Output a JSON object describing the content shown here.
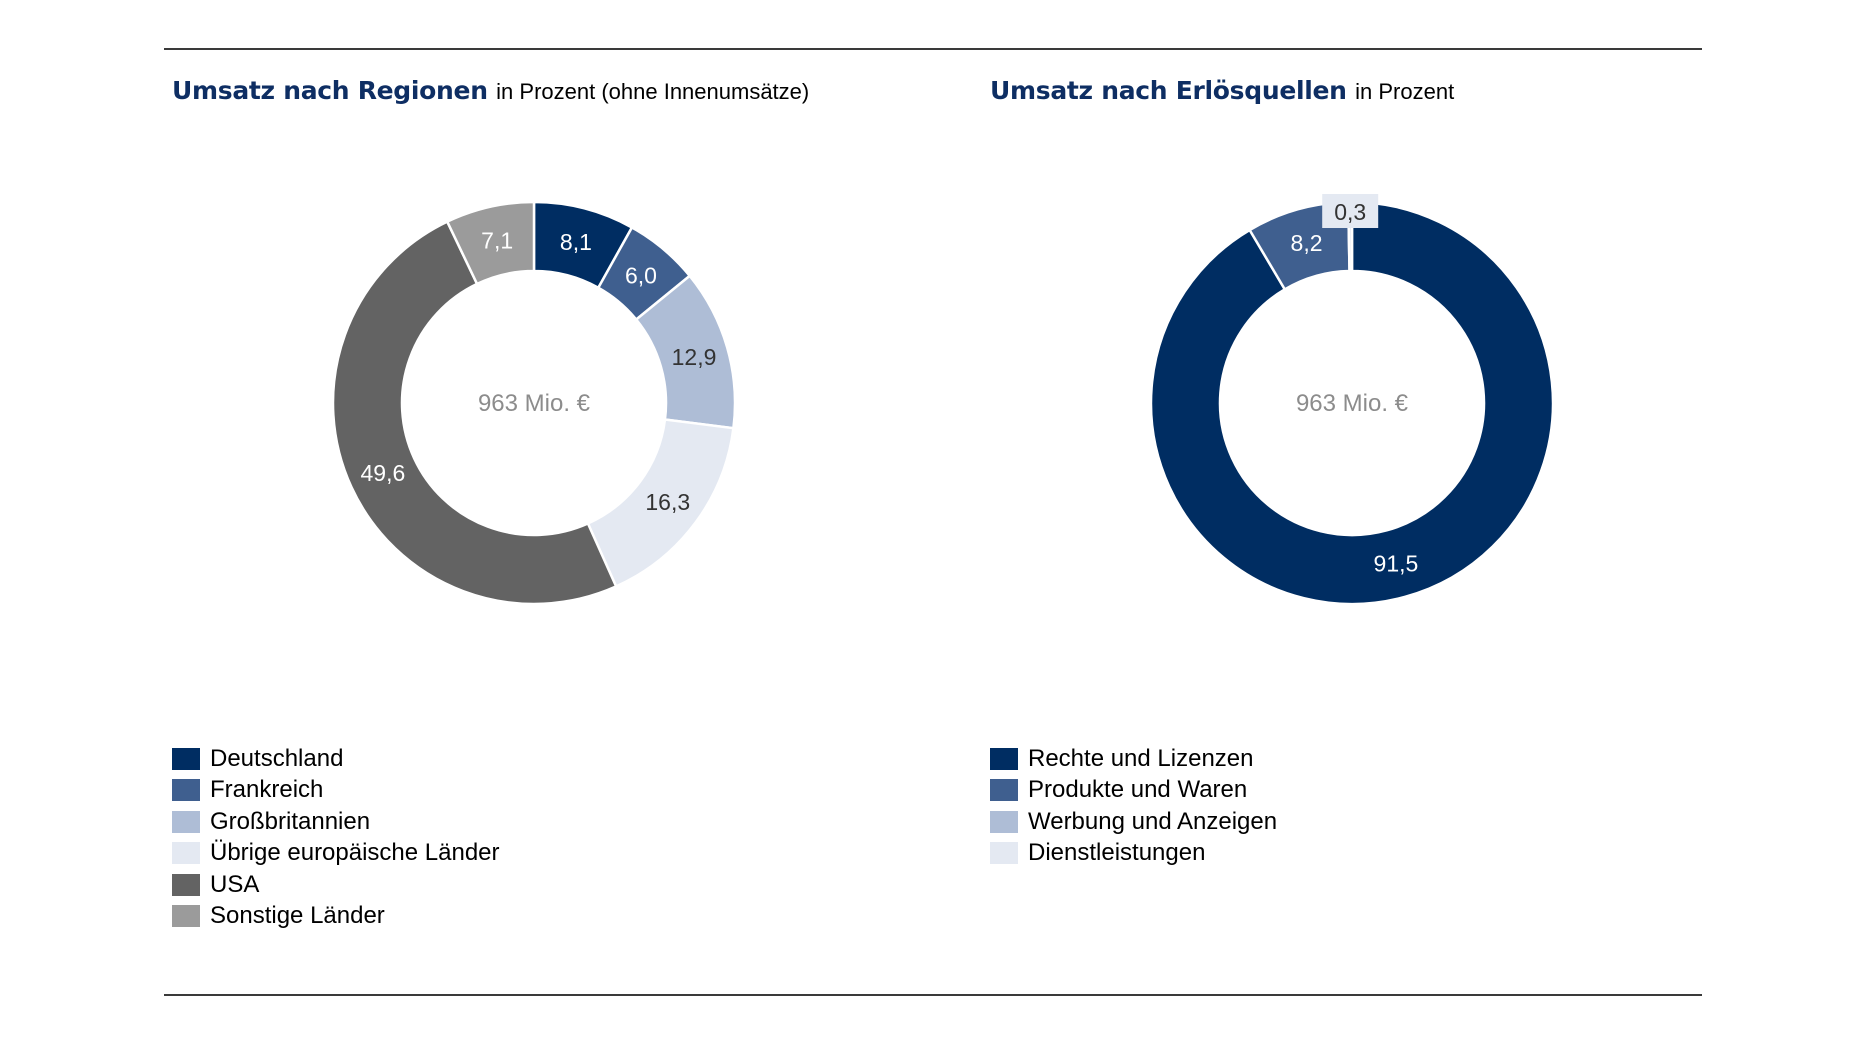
{
  "chart_data": [
    {
      "type": "pie",
      "variant": "donut",
      "title": "Umsatz nach Regionen",
      "subtitle": "in Prozent (ohne Innenumsätze)",
      "center_label": "963 Mio. €",
      "categories": [
        "Deutschland",
        "Frankreich",
        "Großbritannien",
        "Übrige europäische Länder",
        "USA",
        "Sonstige Länder"
      ],
      "values": [
        8.1,
        6.0,
        12.9,
        16.3,
        49.6,
        7.1
      ],
      "value_labels": [
        "8,1",
        "6,0",
        "12,9",
        "16,3",
        "49,6",
        "7,1"
      ],
      "colors": [
        "#002d62",
        "#3f5f8f",
        "#aebdd6",
        "#e4e9f2",
        "#636363",
        "#9b9b9b"
      ],
      "label_colors": [
        "#ffffff",
        "#ffffff",
        "#333333",
        "#333333",
        "#ffffff",
        "#ffffff"
      ],
      "legend_position": "bottom-left"
    },
    {
      "type": "pie",
      "variant": "donut",
      "title": "Umsatz nach Erlösquellen",
      "subtitle": "in Prozent",
      "center_label": "963 Mio. €",
      "categories": [
        "Rechte und Lizenzen",
        "Produkte und Waren",
        "Werbung und Anzeigen",
        "Dienstleistungen"
      ],
      "values": [
        91.5,
        8.2,
        0.0,
        0.3
      ],
      "value_labels": [
        "91,5",
        "8,2",
        "",
        "0,3"
      ],
      "colors": [
        "#002d62",
        "#3f5f8f",
        "#aebdd6",
        "#e4e9f2"
      ],
      "label_colors": [
        "#ffffff",
        "#ffffff",
        "#333333",
        "#333333"
      ],
      "legend_position": "bottom-left"
    }
  ]
}
